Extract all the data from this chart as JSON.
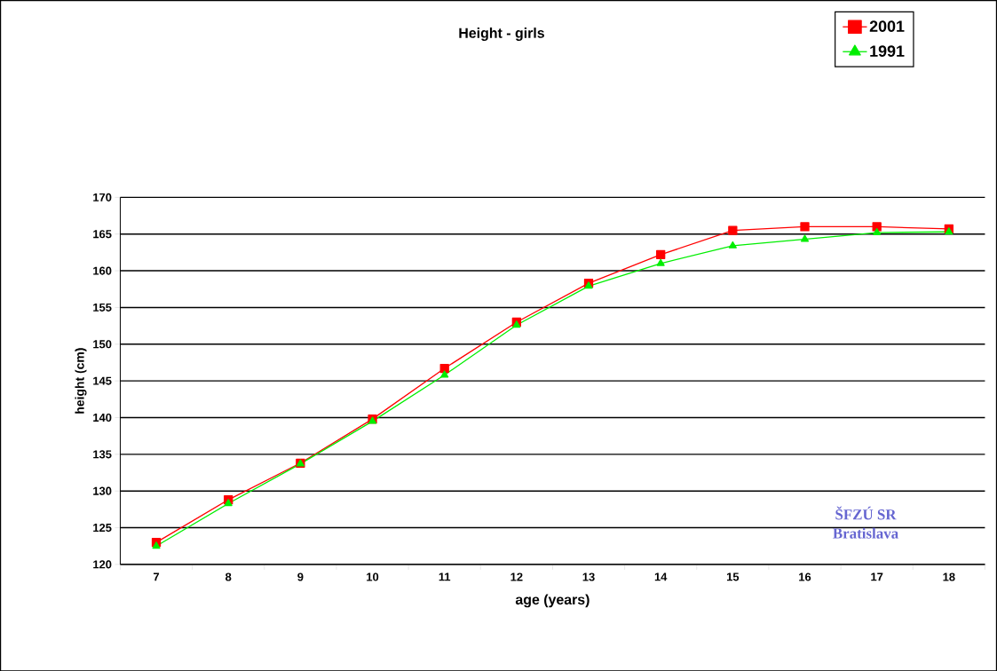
{
  "chart_data": {
    "type": "line",
    "title": "Height - girls",
    "xlabel": "age (years)",
    "ylabel": "height (cm)",
    "categories": [
      "7",
      "8",
      "9",
      "10",
      "11",
      "12",
      "13",
      "14",
      "15",
      "16",
      "17",
      "18"
    ],
    "series": [
      {
        "name": "2001",
        "color": "#ff0000",
        "marker": "square",
        "values": [
          123.0,
          128.8,
          133.8,
          139.8,
          146.7,
          153.0,
          158.3,
          162.2,
          165.5,
          166.0,
          166.0,
          165.7
        ]
      },
      {
        "name": "1991",
        "color": "#00ee00",
        "marker": "triangle",
        "values": [
          122.5,
          128.3,
          133.7,
          139.5,
          145.8,
          152.6,
          157.9,
          161.0,
          163.4,
          164.3,
          165.2,
          165.3
        ]
      }
    ],
    "ylim": [
      120,
      170
    ],
    "yticks": [
      120,
      125,
      130,
      135,
      140,
      145,
      150,
      155,
      160,
      165,
      170
    ],
    "grid": "y",
    "legend": "top right",
    "line_style": "solid",
    "annotations": [
      "ŠFZÚ SR",
      "Bratislava"
    ]
  }
}
